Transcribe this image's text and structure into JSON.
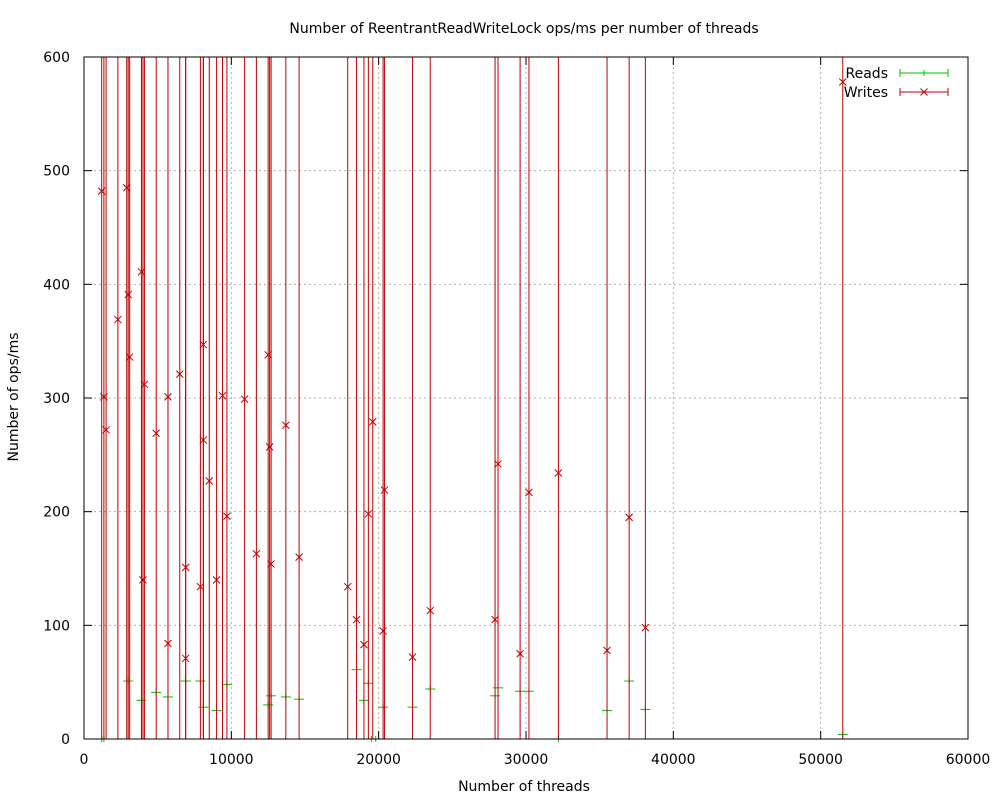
{
  "chart_data": {
    "type": "scatter",
    "title": "Number of ReentrantReadWriteLock ops/ms per number of threads",
    "xlabel": "Number of threads",
    "ylabel": "Number of ops/ms",
    "xlim": [
      0,
      60000
    ],
    "ylim": [
      0,
      600
    ],
    "xticks": [
      0,
      10000,
      20000,
      30000,
      40000,
      50000,
      60000
    ],
    "yticks": [
      0,
      100,
      200,
      300,
      400,
      500,
      600
    ],
    "grid": true,
    "legend": {
      "placement": "top-right"
    },
    "colors": {
      "reads": "#00c000",
      "writes": "#c00000",
      "grid": "#b0b0b0"
    },
    "series": [
      {
        "name": "Reads",
        "marker": "plus",
        "error_bars": "x",
        "points": [
          [
            1200,
            0
          ],
          [
            1350,
            0
          ],
          [
            3000,
            51
          ],
          [
            3900,
            34
          ],
          [
            4900,
            41
          ],
          [
            5700,
            37
          ],
          [
            6900,
            51
          ],
          [
            7900,
            51
          ],
          [
            8100,
            28
          ],
          [
            9000,
            25
          ],
          [
            9700,
            48
          ],
          [
            12500,
            30
          ],
          [
            12700,
            38
          ],
          [
            13700,
            37
          ],
          [
            14600,
            35
          ],
          [
            18500,
            61
          ],
          [
            19000,
            34
          ],
          [
            19300,
            49
          ],
          [
            19500,
            0
          ],
          [
            19800,
            0
          ],
          [
            20300,
            28
          ],
          [
            22300,
            28
          ],
          [
            23500,
            44
          ],
          [
            27900,
            38
          ],
          [
            28100,
            45
          ],
          [
            29600,
            42
          ],
          [
            30200,
            42
          ],
          [
            32200,
            0
          ],
          [
            35500,
            25
          ],
          [
            37000,
            51
          ],
          [
            38100,
            26
          ],
          [
            51500,
            4
          ]
        ]
      },
      {
        "name": "Writes",
        "marker": "cross",
        "error_bars": "y",
        "points": [
          [
            1200,
            482
          ],
          [
            1350,
            301
          ],
          [
            1500,
            272
          ],
          [
            2300,
            369
          ],
          [
            2900,
            485
          ],
          [
            3000,
            391
          ],
          [
            3100,
            336
          ],
          [
            3900,
            411
          ],
          [
            4000,
            140
          ],
          [
            4100,
            312
          ],
          [
            4900,
            269
          ],
          [
            5700,
            84
          ],
          [
            5700,
            301
          ],
          [
            6500,
            321
          ],
          [
            6900,
            151
          ],
          [
            6900,
            71
          ],
          [
            7900,
            134
          ],
          [
            8100,
            347
          ],
          [
            8100,
            263
          ],
          [
            8500,
            227
          ],
          [
            9000,
            140
          ],
          [
            9400,
            302
          ],
          [
            9700,
            196
          ],
          [
            10900,
            299
          ],
          [
            11700,
            163
          ],
          [
            12500,
            338
          ],
          [
            12600,
            257
          ],
          [
            12700,
            154
          ],
          [
            13700,
            276
          ],
          [
            14600,
            160
          ],
          [
            17900,
            134
          ],
          [
            18500,
            105
          ],
          [
            19000,
            83
          ],
          [
            19300,
            198
          ],
          [
            19600,
            279
          ],
          [
            20300,
            95
          ],
          [
            20400,
            219
          ],
          [
            22300,
            72
          ],
          [
            23500,
            113
          ],
          [
            27900,
            105
          ],
          [
            28100,
            242
          ],
          [
            29600,
            75
          ],
          [
            30200,
            217
          ],
          [
            32200,
            234
          ],
          [
            35500,
            78
          ],
          [
            37000,
            195
          ],
          [
            38100,
            98
          ],
          [
            51500,
            578
          ]
        ]
      }
    ]
  }
}
